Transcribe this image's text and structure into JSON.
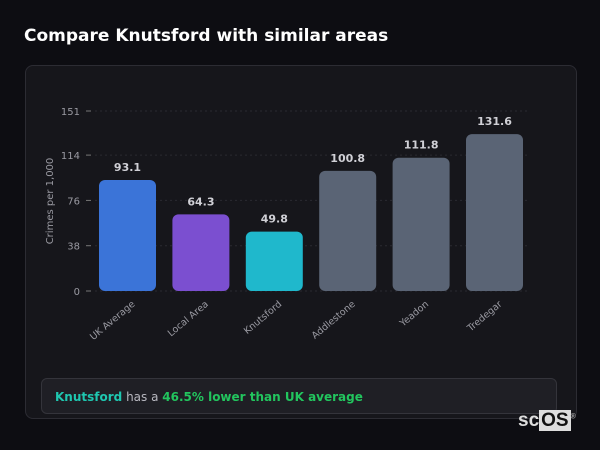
{
  "title": "Compare Knutsford with similar areas",
  "chart_data": {
    "type": "bar",
    "title": "",
    "ylabel": "Crimes per 1,000",
    "xlabel": "",
    "ylim": [
      0,
      151
    ],
    "yticks": [
      0,
      38,
      76,
      114,
      151
    ],
    "grid": true,
    "categories": [
      "UK Average",
      "Local Area",
      "Knutsford",
      "Addlestone",
      "Yeadon",
      "Tredegar"
    ],
    "values": [
      93.1,
      64.3,
      49.8,
      100.8,
      111.8,
      131.6
    ],
    "colors": [
      "#3b74d8",
      "#7b4fd0",
      "#1fb8cc",
      "#5a6475",
      "#5a6475",
      "#5a6475"
    ]
  },
  "summary": {
    "place": "Knutsford",
    "middle": " has a ",
    "comparison": "46.5% lower than UK average"
  },
  "logo": {
    "text_a": "sc",
    "text_b": "OS",
    "mark": "®"
  }
}
